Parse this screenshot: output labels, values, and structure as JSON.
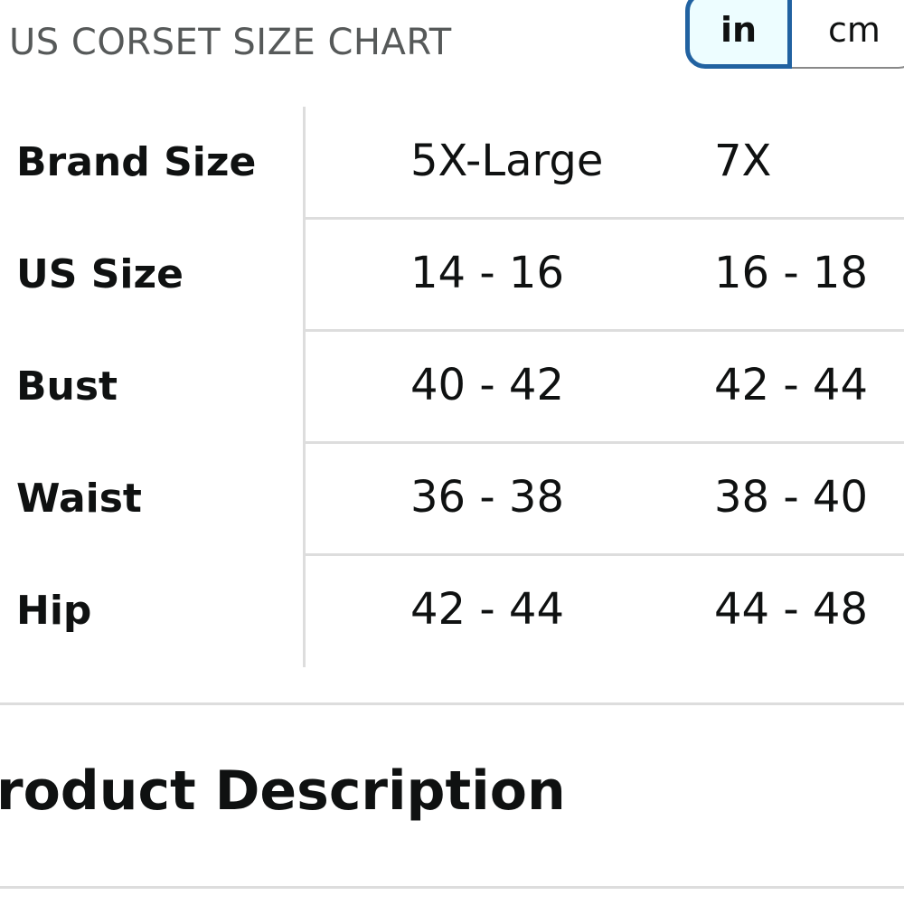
{
  "header": {
    "title": "US CORSET SIZE CHART",
    "units": [
      "in",
      "cm"
    ]
  },
  "table": {
    "rows": [
      [
        "Brand Size",
        "5X-Large",
        "7X"
      ],
      [
        "US Size",
        "14 - 16",
        "16 - 18"
      ],
      [
        "Bust",
        "40 - 42",
        "42 - 44"
      ],
      [
        "Waist",
        "36 - 38",
        "38 - 40"
      ],
      [
        "Hip",
        "42 - 44",
        "44 - 48"
      ]
    ]
  },
  "section": {
    "title": "roduct Description"
  }
}
